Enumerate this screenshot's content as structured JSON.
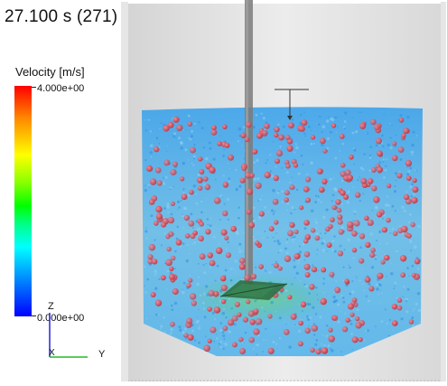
{
  "time_label": "27.100 s (271)",
  "legend": {
    "title": "Velocity [m/s]",
    "max_label": "4.000e+00",
    "min_label": "0.000e+00"
  },
  "axes": {
    "z_label": "Z",
    "x_label": "X",
    "y_label": "Y"
  },
  "colors": {
    "fluid": "#4aaee8",
    "particle": "#e05564",
    "tank_wall": "#d9d9d9",
    "shaft": "#6f6f6f",
    "impeller": "#2e6a3c"
  }
}
